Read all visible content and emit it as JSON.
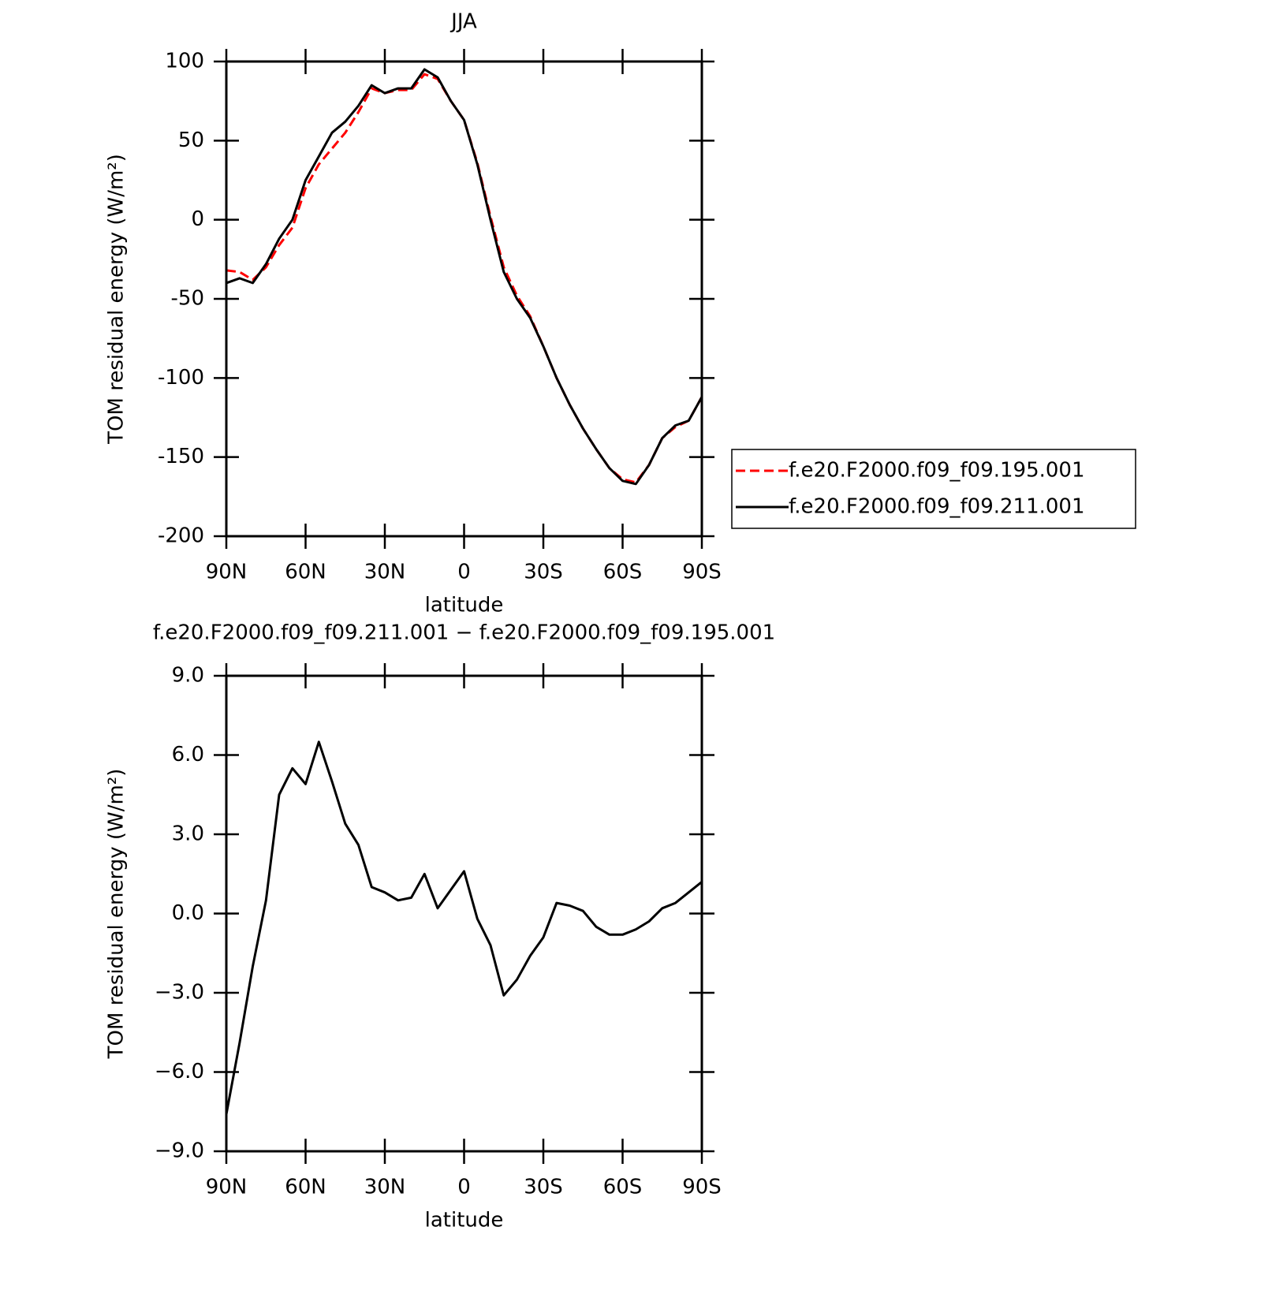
{
  "chart_data": [
    {
      "type": "line",
      "title": "JJA",
      "x_label": "latitude",
      "y_label": "TOM residual energy (W/m²)",
      "x": [
        90,
        85,
        80,
        75,
        70,
        65,
        60,
        55,
        50,
        45,
        40,
        35,
        30,
        25,
        20,
        15,
        10,
        5,
        0,
        -5,
        -10,
        -15,
        -20,
        -25,
        -30,
        -35,
        -40,
        -45,
        -50,
        -55,
        -60,
        -65,
        -70,
        -75,
        -80,
        -85,
        -90
      ],
      "xlim": [
        90,
        -90
      ],
      "xticks": [
        {
          "value": 90,
          "label": "90N"
        },
        {
          "value": 60,
          "label": "60N"
        },
        {
          "value": 30,
          "label": "30N"
        },
        0,
        {
          "value": -30,
          "label": "30S"
        },
        {
          "value": -60,
          "label": "60S"
        },
        {
          "value": -90,
          "label": "90S"
        }
      ],
      "ylim": [
        -200,
        100
      ],
      "yticks": [
        -200,
        -150,
        -100,
        -50,
        0,
        50,
        100
      ],
      "legend": "right",
      "series": [
        {
          "name": "f.e20.F2000.f09_f09.195.001",
          "color": "#ff0000",
          "dashed": true,
          "values": [
            -32,
            -33,
            -38,
            -30,
            -16,
            -5,
            20,
            35,
            45,
            55,
            68,
            83,
            80,
            82,
            82,
            92,
            89,
            75,
            63,
            36,
            2,
            -30,
            -48,
            -61,
            -80,
            -100,
            -117,
            -132,
            -145,
            -157,
            -164,
            -166,
            -155,
            -138,
            -131,
            -127,
            -112
          ]
        },
        {
          "name": "f.e20.F2000.f09_f09.211.001",
          "color": "#000000",
          "dashed": false,
          "values": [
            -40,
            -37,
            -40,
            -28,
            -12,
            0,
            25,
            40,
            55,
            62,
            72,
            85,
            80,
            83,
            83,
            95,
            90,
            75,
            63,
            35,
            0,
            -33,
            -50,
            -62,
            -80,
            -100,
            -117,
            -132,
            -145,
            -157,
            -165,
            -167,
            -155,
            -138,
            -130,
            -127,
            -112
          ]
        }
      ]
    },
    {
      "type": "line",
      "title": "f.e20.F2000.f09_f09.211.001 − f.e20.F2000.f09_f09.195.001",
      "x_label": "latitude",
      "y_label": "TOM residual energy (W/m²)",
      "x": [
        90,
        85,
        80,
        75,
        70,
        65,
        60,
        55,
        50,
        45,
        40,
        35,
        30,
        25,
        20,
        15,
        10,
        5,
        0,
        -5,
        -10,
        -15,
        -20,
        -25,
        -30,
        -35,
        -40,
        -45,
        -50,
        -55,
        -60,
        -65,
        -70,
        -75,
        -80,
        -85,
        -90
      ],
      "xlim": [
        90,
        -90
      ],
      "xticks": [
        {
          "value": 90,
          "label": "90N"
        },
        {
          "value": 60,
          "label": "60N"
        },
        {
          "value": 30,
          "label": "30N"
        },
        0,
        {
          "value": -30,
          "label": "30S"
        },
        {
          "value": -60,
          "label": "60S"
        },
        {
          "value": -90,
          "label": "90S"
        }
      ],
      "ylim": [
        -9,
        9
      ],
      "yticks": [
        {
          "value": -9,
          "label": "−9.0"
        },
        {
          "value": -6,
          "label": "−6.0"
        },
        {
          "value": -3,
          "label": "−3.0"
        },
        {
          "value": 0,
          "label": "0.0"
        },
        {
          "value": 3,
          "label": "3.0"
        },
        {
          "value": 6,
          "label": "6.0"
        },
        {
          "value": 9,
          "label": "9.0"
        }
      ],
      "series": [
        {
          "color": "#000000",
          "dashed": false,
          "values": [
            -7.6,
            -4.9,
            -2.0,
            0.5,
            4.5,
            5.5,
            4.9,
            6.5,
            5.0,
            3.4,
            2.6,
            1.0,
            0.8,
            0.5,
            0.6,
            1.5,
            0.2,
            0.9,
            1.6,
            -0.2,
            -1.2,
            -3.1,
            -2.5,
            -1.6,
            -0.9,
            0.4,
            0.3,
            0.1,
            -0.5,
            -0.8,
            -0.8,
            -0.6,
            -0.3,
            0.2,
            0.4,
            0.8,
            1.2
          ]
        }
      ]
    }
  ]
}
